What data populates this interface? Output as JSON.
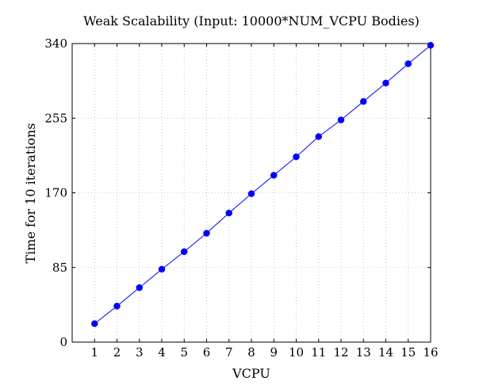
{
  "chart_data": {
    "type": "line",
    "title": "Weak Scalability (Input: 10000*NUM_VCPU Bodies)",
    "xlabel": "VCPU",
    "ylabel": "Time for 10 iterations",
    "x": [
      1,
      2,
      3,
      4,
      5,
      6,
      7,
      8,
      9,
      10,
      11,
      12,
      13,
      14,
      15,
      16
    ],
    "xticks": [
      "1",
      "2",
      "3",
      "4",
      "5",
      "6",
      "7",
      "8",
      "9",
      "10",
      "11",
      "12",
      "13",
      "14",
      "15",
      "16"
    ],
    "xlim": [
      0,
      16
    ],
    "ylim": [
      0,
      340
    ],
    "yticks": [
      "0",
      "85",
      "170",
      "255",
      "340"
    ],
    "grid": true,
    "series": [
      {
        "color": "#0000ff",
        "marker": "circle",
        "values": [
          21,
          41,
          62,
          83,
          103,
          124,
          147,
          169,
          190,
          211,
          234,
          253,
          274,
          295,
          317,
          338
        ]
      }
    ]
  }
}
